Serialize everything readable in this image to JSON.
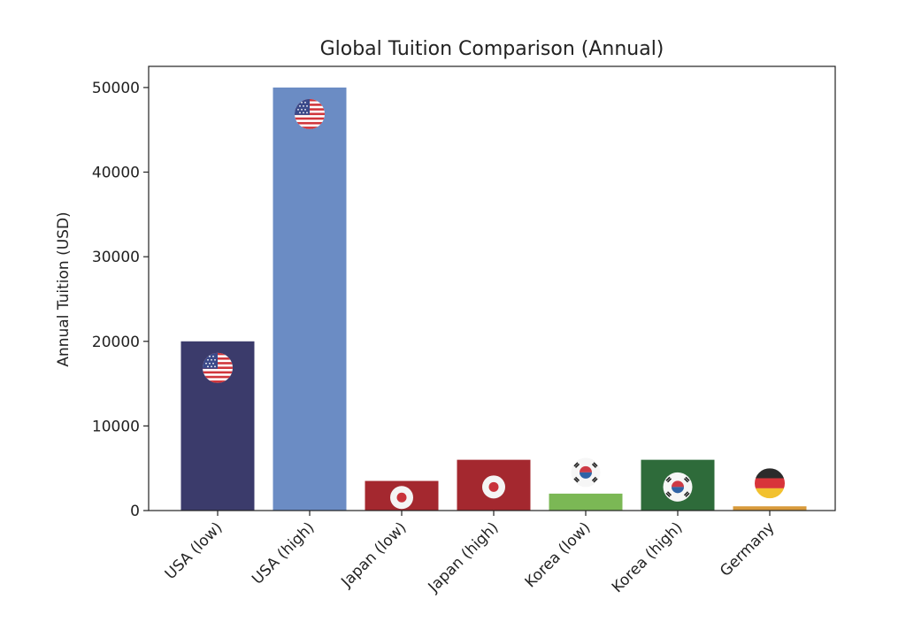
{
  "chart_data": {
    "type": "bar",
    "title": "Global Tuition Comparison (Annual)",
    "xlabel": "",
    "ylabel": "Annual Tuition (USD)",
    "ylim": [
      0,
      52500
    ],
    "yticks": [
      0,
      10000,
      20000,
      30000,
      40000,
      50000
    ],
    "ytick_labels": [
      "0",
      "10000",
      "20000",
      "30000",
      "40000",
      "50000"
    ],
    "grid": false,
    "categories": [
      "USA (low)",
      "USA (high)",
      "Japan (low)",
      "Japan (high)",
      "Korea (low)",
      "Korea (high)",
      "Germany"
    ],
    "values": [
      20000,
      50000,
      3500,
      6000,
      2000,
      6000,
      500
    ],
    "bar_colors": [
      "#3b3b6b",
      "#6b8cc4",
      "#a4282f",
      "#a4282f",
      "#7bb855",
      "#2e6b3a",
      "#d89a3b"
    ],
    "flags": [
      "usa-flag-icon",
      "usa-flag-icon",
      "japan-flag-icon",
      "japan-flag-icon",
      "korea-flag-icon",
      "korea-flag-icon",
      "germany-flag-icon"
    ]
  }
}
